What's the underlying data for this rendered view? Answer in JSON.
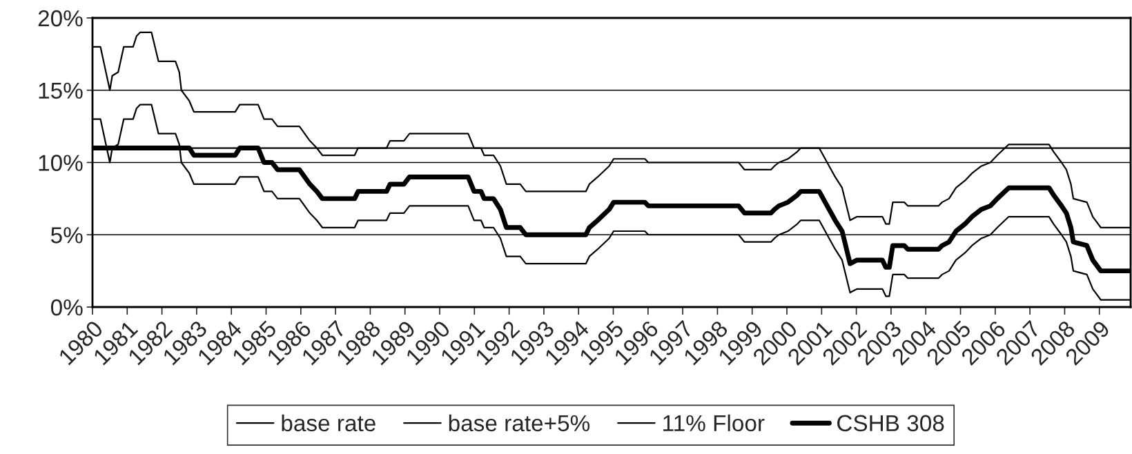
{
  "chart_data": {
    "type": "line",
    "x": [
      1980.0,
      1980.23,
      1980.5,
      1980.57,
      1980.74,
      1980.9,
      1981.17,
      1981.27,
      1981.37,
      1981.7,
      1981.9,
      1982.39,
      1982.5,
      1982.56,
      1982.79,
      1982.92,
      1984.11,
      1984.24,
      1984.77,
      1984.94,
      1985.17,
      1985.33,
      1985.96,
      1986.26,
      1986.46,
      1986.62,
      1987.55,
      1987.65,
      1988.47,
      1988.57,
      1988.97,
      1989.13,
      1990.82,
      1990.99,
      1991.19,
      1991.28,
      1991.55,
      1991.75,
      1991.92,
      1992.32,
      1992.48,
      1994.21,
      1994.31,
      1994.55,
      1994.88,
      1995.01,
      1995.91,
      1996.01,
      1998.61,
      1998.78,
      1999.54,
      1999.64,
      1999.77,
      2000.03,
      2000.3,
      2000.4,
      2000.93,
      2001.16,
      2001.39,
      2001.59,
      2001.82,
      2002.02,
      2002.75,
      2002.85,
      2002.95,
      2003.05,
      2003.38,
      2003.48,
      2004.37,
      2004.47,
      2004.67,
      2004.87,
      2005.13,
      2005.33,
      2005.6,
      2005.86,
      2006.06,
      2006.39,
      2007.55,
      2007.68,
      2007.91,
      2008.05,
      2008.18,
      2008.25,
      2008.64,
      2008.81,
      2009.04,
      2009.9
    ],
    "series": [
      {
        "name": "base rate",
        "color": "#000000",
        "values": [
          13,
          13,
          10,
          11,
          11.25,
          13,
          13,
          13.75,
          14,
          14,
          12,
          12,
          11.25,
          10,
          9.25,
          8.5,
          8.5,
          9,
          9,
          8,
          8,
          7.5,
          7.5,
          6.5,
          6,
          5.5,
          5.5,
          6,
          6,
          6.5,
          6.5,
          7,
          7,
          6,
          6,
          5.5,
          5.5,
          4.75,
          3.5,
          3.5,
          3,
          3,
          3.5,
          4,
          4.75,
          5.25,
          5.25,
          5,
          5,
          4.5,
          4.5,
          4.75,
          5,
          5.25,
          5.75,
          6,
          6,
          5,
          4,
          3.25,
          1,
          1.25,
          1.25,
          0.75,
          0.75,
          2.25,
          2.25,
          2,
          2,
          2.25,
          2.5,
          3.25,
          3.75,
          4.25,
          4.75,
          5,
          5.5,
          6.25,
          6.25,
          5.75,
          5,
          4.5,
          3.5,
          2.5,
          2.25,
          1.25,
          0.5,
          0.5
        ]
      },
      {
        "name": "base rate+5%",
        "color": "#000000",
        "values": [
          18,
          18,
          15,
          16,
          16.25,
          18,
          18,
          18.75,
          19,
          19,
          17,
          17,
          16.25,
          15,
          14.25,
          13.5,
          13.5,
          14,
          14,
          13,
          13,
          12.5,
          12.5,
          11.5,
          11,
          10.5,
          10.5,
          11,
          11,
          11.5,
          11.5,
          12,
          12,
          11,
          11,
          10.5,
          10.5,
          9.75,
          8.5,
          8.5,
          8,
          8,
          8.5,
          9,
          9.75,
          10.25,
          10.25,
          10,
          10,
          9.5,
          9.5,
          9.75,
          10,
          10.25,
          10.75,
          11,
          11,
          10,
          9,
          8.25,
          6,
          6.25,
          6.25,
          5.75,
          5.75,
          7.25,
          7.25,
          7,
          7,
          7.25,
          7.5,
          8.25,
          8.75,
          9.25,
          9.75,
          10,
          10.5,
          11.25,
          11.25,
          10.75,
          10,
          9.5,
          8.5,
          7.5,
          7.25,
          6.25,
          5.5,
          5.5
        ]
      },
      {
        "name": "11% Floor",
        "color": "#000000",
        "x": [
          1980.0,
          2009.9
        ],
        "values": [
          11,
          11
        ]
      },
      {
        "name": "CSHB 308",
        "color": "#000000",
        "values": [
          11,
          11,
          11,
          11,
          11,
          11,
          11,
          11,
          11,
          11,
          11,
          11,
          11,
          11,
          11,
          10.5,
          10.5,
          11,
          11,
          10,
          10,
          9.5,
          9.5,
          8.5,
          8,
          7.5,
          7.5,
          8,
          8,
          8.5,
          8.5,
          9,
          9,
          8,
          8,
          7.5,
          7.5,
          6.75,
          5.5,
          5.5,
          5,
          5,
          5.5,
          6,
          6.75,
          7.25,
          7.25,
          7,
          7,
          6.5,
          6.5,
          6.75,
          7,
          7.25,
          7.75,
          8,
          8,
          7,
          6,
          5.25,
          3,
          3.25,
          3.25,
          2.75,
          2.75,
          4.25,
          4.25,
          4,
          4,
          4.25,
          4.5,
          5.25,
          5.75,
          6.25,
          6.75,
          7,
          7.5,
          8.25,
          8.25,
          7.75,
          7,
          6.5,
          5.5,
          4.5,
          4.25,
          3.25,
          2.5,
          2.5
        ]
      }
    ],
    "xlim": [
      1980,
      2009.9
    ],
    "xticks": [
      1980,
      1981,
      1982,
      1983,
      1984,
      1985,
      1986,
      1987,
      1988,
      1989,
      1990,
      1991,
      1992,
      1993,
      1994,
      1995,
      1996,
      1997,
      1998,
      1999,
      2000,
      2001,
      2002,
      2003,
      2004,
      2005,
      2006,
      2007,
      2008,
      2009
    ],
    "ylim": [
      0,
      20
    ],
    "yticks": [
      {
        "value": 0,
        "label": "0%"
      },
      {
        "value": 5,
        "label": "5%"
      },
      {
        "value": 10,
        "label": "10%"
      },
      {
        "value": 15,
        "label": "15%"
      },
      {
        "value": 20,
        "label": "20%"
      }
    ],
    "grid": "y",
    "legend": "bottom",
    "marker": "none",
    "line_style": "solid"
  }
}
